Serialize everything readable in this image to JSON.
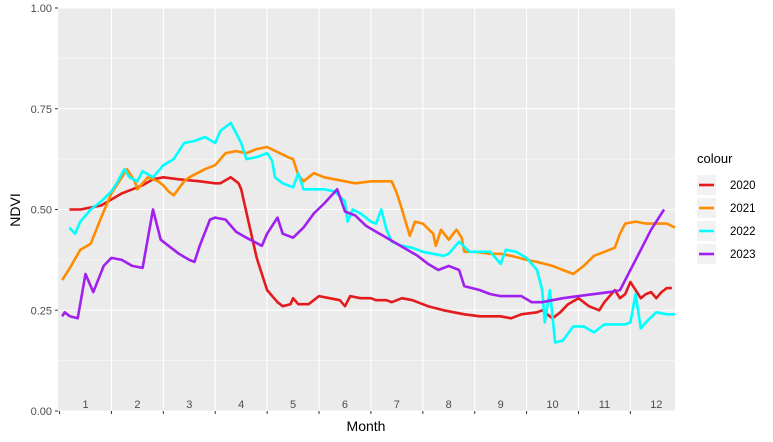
{
  "chart_data": {
    "type": "line",
    "xlabel": "Month",
    "ylabel": "NDVI",
    "xlim": [
      0.47,
      12.36
    ],
    "ylim": [
      0,
      1
    ],
    "yticks": [
      "0.00",
      "0.25",
      "0.50",
      "0.75",
      "1.00"
    ],
    "ytick_values": [
      0,
      0.25,
      0.5,
      0.75,
      1.0
    ],
    "xticks": [
      "1",
      "2",
      "3",
      "4",
      "5",
      "6",
      "7",
      "8",
      "9",
      "10",
      "11",
      "12"
    ],
    "xtick_values": [
      1,
      2,
      3,
      4,
      5,
      6,
      7,
      8,
      9,
      10,
      11,
      12
    ],
    "grid": true,
    "background": "#ebebeb",
    "legend": {
      "title": "colour",
      "position": "right"
    },
    "series": [
      {
        "name": "2020",
        "color": "#e41a1c",
        "points": [
          [
            0.69,
            0.5
          ],
          [
            0.9,
            0.5
          ],
          [
            1.3,
            0.51
          ],
          [
            1.7,
            0.54
          ],
          [
            2.1,
            0.56
          ],
          [
            2.3,
            0.575
          ],
          [
            2.5,
            0.58
          ],
          [
            2.8,
            0.575
          ],
          [
            3.2,
            0.57
          ],
          [
            3.5,
            0.565
          ],
          [
            3.6,
            0.565
          ],
          [
            3.8,
            0.58
          ],
          [
            3.95,
            0.565
          ],
          [
            4.0,
            0.55
          ],
          [
            4.3,
            0.38
          ],
          [
            4.5,
            0.3
          ],
          [
            4.7,
            0.27
          ],
          [
            4.8,
            0.26
          ],
          [
            4.95,
            0.265
          ],
          [
            5.0,
            0.28
          ],
          [
            5.1,
            0.265
          ],
          [
            5.3,
            0.265
          ],
          [
            5.5,
            0.285
          ],
          [
            5.7,
            0.28
          ],
          [
            5.9,
            0.275
          ],
          [
            6.0,
            0.26
          ],
          [
            6.1,
            0.285
          ],
          [
            6.3,
            0.28
          ],
          [
            6.5,
            0.28
          ],
          [
            6.6,
            0.275
          ],
          [
            6.8,
            0.275
          ],
          [
            6.9,
            0.27
          ],
          [
            7.1,
            0.28
          ],
          [
            7.3,
            0.275
          ],
          [
            7.6,
            0.26
          ],
          [
            7.9,
            0.25
          ],
          [
            8.1,
            0.245
          ],
          [
            8.3,
            0.24
          ],
          [
            8.6,
            0.235
          ],
          [
            9.0,
            0.235
          ],
          [
            9.2,
            0.23
          ],
          [
            9.4,
            0.24
          ],
          [
            9.7,
            0.245
          ],
          [
            9.8,
            0.25
          ],
          [
            9.95,
            0.235
          ],
          [
            10.0,
            0.23
          ],
          [
            10.15,
            0.245
          ],
          [
            10.3,
            0.265
          ],
          [
            10.5,
            0.28
          ],
          [
            10.7,
            0.26
          ],
          [
            10.9,
            0.25
          ],
          [
            11.0,
            0.27
          ],
          [
            11.2,
            0.3
          ],
          [
            11.3,
            0.28
          ],
          [
            11.4,
            0.29
          ],
          [
            11.5,
            0.32
          ],
          [
            11.6,
            0.3
          ],
          [
            11.7,
            0.28
          ],
          [
            11.8,
            0.29
          ],
          [
            11.9,
            0.295
          ],
          [
            12.0,
            0.28
          ],
          [
            12.1,
            0.295
          ],
          [
            12.2,
            0.305
          ],
          [
            12.3,
            0.305
          ]
        ]
      },
      {
        "name": "2021",
        "color": "#ff8c00",
        "points": [
          [
            0.55,
            0.325
          ],
          [
            0.7,
            0.355
          ],
          [
            0.9,
            0.4
          ],
          [
            1.1,
            0.415
          ],
          [
            1.3,
            0.48
          ],
          [
            1.5,
            0.54
          ],
          [
            1.7,
            0.58
          ],
          [
            1.8,
            0.6
          ],
          [
            1.95,
            0.57
          ],
          [
            2.0,
            0.55
          ],
          [
            2.2,
            0.58
          ],
          [
            2.4,
            0.57
          ],
          [
            2.5,
            0.56
          ],
          [
            2.6,
            0.545
          ],
          [
            2.7,
            0.535
          ],
          [
            2.9,
            0.57
          ],
          [
            3.0,
            0.58
          ],
          [
            3.3,
            0.6
          ],
          [
            3.5,
            0.61
          ],
          [
            3.7,
            0.64
          ],
          [
            3.9,
            0.645
          ],
          [
            4.1,
            0.64
          ],
          [
            4.3,
            0.65
          ],
          [
            4.5,
            0.655
          ],
          [
            4.9,
            0.63
          ],
          [
            5.0,
            0.625
          ],
          [
            5.1,
            0.585
          ],
          [
            5.2,
            0.57
          ],
          [
            5.4,
            0.59
          ],
          [
            5.5,
            0.585
          ],
          [
            5.6,
            0.58
          ],
          [
            5.8,
            0.575
          ],
          [
            6.0,
            0.57
          ],
          [
            6.2,
            0.565
          ],
          [
            6.5,
            0.57
          ],
          [
            6.7,
            0.57
          ],
          [
            6.9,
            0.57
          ],
          [
            7.0,
            0.54
          ],
          [
            7.1,
            0.5
          ],
          [
            7.25,
            0.435
          ],
          [
            7.35,
            0.47
          ],
          [
            7.5,
            0.465
          ],
          [
            7.7,
            0.44
          ],
          [
            7.75,
            0.41
          ],
          [
            7.85,
            0.45
          ],
          [
            8.0,
            0.425
          ],
          [
            8.15,
            0.45
          ],
          [
            8.25,
            0.43
          ],
          [
            8.3,
            0.395
          ],
          [
            8.5,
            0.395
          ],
          [
            8.8,
            0.39
          ],
          [
            9.0,
            0.39
          ],
          [
            9.2,
            0.385
          ],
          [
            9.5,
            0.375
          ],
          [
            9.7,
            0.37
          ],
          [
            10.0,
            0.36
          ],
          [
            10.3,
            0.345
          ],
          [
            10.4,
            0.34
          ],
          [
            10.6,
            0.36
          ],
          [
            10.8,
            0.385
          ],
          [
            11.0,
            0.395
          ],
          [
            11.2,
            0.405
          ],
          [
            11.3,
            0.44
          ],
          [
            11.4,
            0.465
          ],
          [
            11.6,
            0.47
          ],
          [
            11.8,
            0.465
          ],
          [
            12.0,
            0.465
          ],
          [
            12.2,
            0.465
          ],
          [
            12.36,
            0.455
          ]
        ]
      },
      {
        "name": "2022",
        "color": "#00ffff",
        "points": [
          [
            0.69,
            0.455
          ],
          [
            0.8,
            0.44
          ],
          [
            0.9,
            0.47
          ],
          [
            1.1,
            0.5
          ],
          [
            1.3,
            0.52
          ],
          [
            1.5,
            0.545
          ],
          [
            1.6,
            0.565
          ],
          [
            1.75,
            0.6
          ],
          [
            1.85,
            0.58
          ],
          [
            2.0,
            0.57
          ],
          [
            2.1,
            0.595
          ],
          [
            2.3,
            0.58
          ],
          [
            2.5,
            0.61
          ],
          [
            2.7,
            0.625
          ],
          [
            2.9,
            0.665
          ],
          [
            3.1,
            0.67
          ],
          [
            3.3,
            0.68
          ],
          [
            3.5,
            0.665
          ],
          [
            3.6,
            0.695
          ],
          [
            3.8,
            0.715
          ],
          [
            4.0,
            0.665
          ],
          [
            4.1,
            0.625
          ],
          [
            4.3,
            0.63
          ],
          [
            4.5,
            0.64
          ],
          [
            4.6,
            0.62
          ],
          [
            4.65,
            0.58
          ],
          [
            4.8,
            0.565
          ],
          [
            5.0,
            0.555
          ],
          [
            5.1,
            0.59
          ],
          [
            5.2,
            0.55
          ],
          [
            5.4,
            0.55
          ],
          [
            5.6,
            0.55
          ],
          [
            5.8,
            0.545
          ],
          [
            6.0,
            0.52
          ],
          [
            6.05,
            0.47
          ],
          [
            6.15,
            0.5
          ],
          [
            6.3,
            0.49
          ],
          [
            6.5,
            0.47
          ],
          [
            6.6,
            0.465
          ],
          [
            6.7,
            0.5
          ],
          [
            6.8,
            0.45
          ],
          [
            6.9,
            0.42
          ],
          [
            7.1,
            0.41
          ],
          [
            7.3,
            0.405
          ],
          [
            7.5,
            0.395
          ],
          [
            7.7,
            0.39
          ],
          [
            7.9,
            0.385
          ],
          [
            8.0,
            0.39
          ],
          [
            8.2,
            0.42
          ],
          [
            8.4,
            0.395
          ],
          [
            8.6,
            0.395
          ],
          [
            8.8,
            0.395
          ],
          [
            9.0,
            0.365
          ],
          [
            9.1,
            0.4
          ],
          [
            9.3,
            0.395
          ],
          [
            9.5,
            0.38
          ],
          [
            9.7,
            0.35
          ],
          [
            9.8,
            0.3
          ],
          [
            9.85,
            0.22
          ],
          [
            9.95,
            0.3
          ],
          [
            10.05,
            0.17
          ],
          [
            10.2,
            0.175
          ],
          [
            10.4,
            0.21
          ],
          [
            10.6,
            0.21
          ],
          [
            10.8,
            0.195
          ],
          [
            11.0,
            0.215
          ],
          [
            11.2,
            0.215
          ],
          [
            11.4,
            0.215
          ],
          [
            11.5,
            0.22
          ],
          [
            11.6,
            0.29
          ],
          [
            11.7,
            0.205
          ],
          [
            11.8,
            0.22
          ],
          [
            12.0,
            0.245
          ],
          [
            12.2,
            0.24
          ],
          [
            12.36,
            0.24
          ]
        ]
      },
      {
        "name": "2023",
        "color": "#a020f0",
        "points": [
          [
            0.55,
            0.235
          ],
          [
            0.6,
            0.245
          ],
          [
            0.7,
            0.235
          ],
          [
            0.85,
            0.23
          ],
          [
            1.0,
            0.34
          ],
          [
            1.15,
            0.295
          ],
          [
            1.35,
            0.36
          ],
          [
            1.5,
            0.38
          ],
          [
            1.7,
            0.375
          ],
          [
            1.9,
            0.36
          ],
          [
            2.1,
            0.355
          ],
          [
            2.3,
            0.5
          ],
          [
            2.45,
            0.425
          ],
          [
            2.6,
            0.41
          ],
          [
            2.8,
            0.39
          ],
          [
            3.0,
            0.375
          ],
          [
            3.1,
            0.37
          ],
          [
            3.2,
            0.41
          ],
          [
            3.4,
            0.475
          ],
          [
            3.5,
            0.48
          ],
          [
            3.7,
            0.475
          ],
          [
            3.9,
            0.445
          ],
          [
            4.1,
            0.43
          ],
          [
            4.4,
            0.41
          ],
          [
            4.5,
            0.44
          ],
          [
            4.7,
            0.48
          ],
          [
            4.8,
            0.44
          ],
          [
            5.0,
            0.43
          ],
          [
            5.2,
            0.455
          ],
          [
            5.4,
            0.49
          ],
          [
            5.6,
            0.515
          ],
          [
            5.85,
            0.55
          ],
          [
            6.0,
            0.495
          ],
          [
            6.2,
            0.485
          ],
          [
            6.4,
            0.46
          ],
          [
            6.6,
            0.445
          ],
          [
            6.8,
            0.43
          ],
          [
            7.0,
            0.415
          ],
          [
            7.2,
            0.4
          ],
          [
            7.4,
            0.385
          ],
          [
            7.6,
            0.365
          ],
          [
            7.8,
            0.35
          ],
          [
            8.0,
            0.36
          ],
          [
            8.2,
            0.35
          ],
          [
            8.3,
            0.31
          ],
          [
            8.6,
            0.3
          ],
          [
            8.8,
            0.29
          ],
          [
            9.0,
            0.285
          ],
          [
            9.2,
            0.285
          ],
          [
            9.4,
            0.285
          ],
          [
            9.6,
            0.27
          ],
          [
            9.8,
            0.27
          ],
          [
            10.0,
            0.275
          ],
          [
            10.2,
            0.28
          ],
          [
            10.5,
            0.285
          ],
          [
            10.8,
            0.29
          ],
          [
            11.1,
            0.295
          ],
          [
            11.3,
            0.3
          ],
          [
            11.5,
            0.35
          ],
          [
            11.7,
            0.4
          ],
          [
            11.9,
            0.45
          ],
          [
            12.1,
            0.49
          ],
          [
            12.15,
            0.5
          ]
        ]
      }
    ]
  }
}
